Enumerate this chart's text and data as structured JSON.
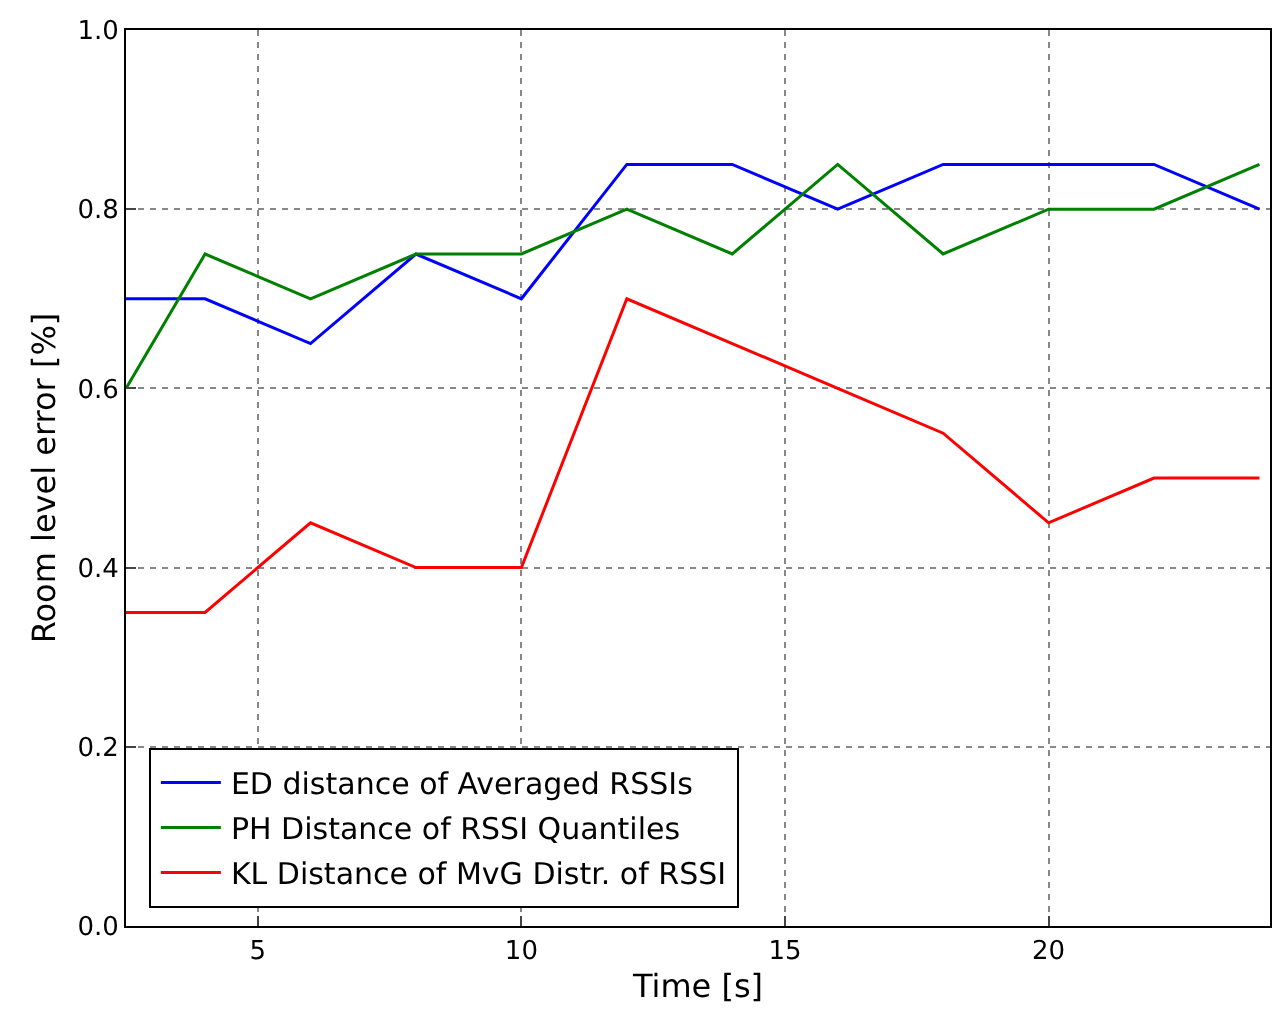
{
  "chart_data": {
    "type": "line",
    "xlabel": "Time [s]",
    "ylabel": "Room level error [%]",
    "x": [
      2.5,
      4,
      6,
      8,
      10,
      12,
      14,
      16,
      18,
      20,
      22,
      24
    ],
    "series": [
      {
        "name": "ED distance of Averaged RSSIs",
        "color": "#0000ff",
        "values": [
          0.7,
          0.7,
          0.65,
          0.75,
          0.7,
          0.85,
          0.85,
          0.8,
          0.85,
          0.85,
          0.85,
          0.8
        ]
      },
      {
        "name": "PH Distance of RSSI Quantiles",
        "color": "#008000",
        "values": [
          0.6,
          0.75,
          0.7,
          0.75,
          0.75,
          0.8,
          0.75,
          0.85,
          0.75,
          0.8,
          0.8,
          0.85
        ]
      },
      {
        "name": "KL Distance of MvG Distr. of RSSI",
        "color": "#ff0000",
        "values": [
          0.35,
          0.35,
          0.45,
          0.4,
          0.4,
          0.7,
          0.65,
          0.6,
          0.55,
          0.45,
          0.5,
          0.5
        ]
      }
    ],
    "xlim": [
      2.5,
      24.2
    ],
    "xticks": [
      5,
      10,
      15,
      20
    ],
    "ylim": [
      0,
      1
    ],
    "yticks": [
      {
        "value": 0,
        "label": "0.0"
      },
      {
        "value": 0.2,
        "label": "0.2"
      },
      {
        "value": 0.4,
        "label": "0.4"
      },
      {
        "value": 0.6,
        "label": "0.6"
      },
      {
        "value": 0.8,
        "label": "0.8"
      },
      {
        "value": 1,
        "label": "1.0"
      }
    ],
    "grid": true,
    "legend": "bottom left",
    "marker": "none",
    "line_style": "solid"
  }
}
